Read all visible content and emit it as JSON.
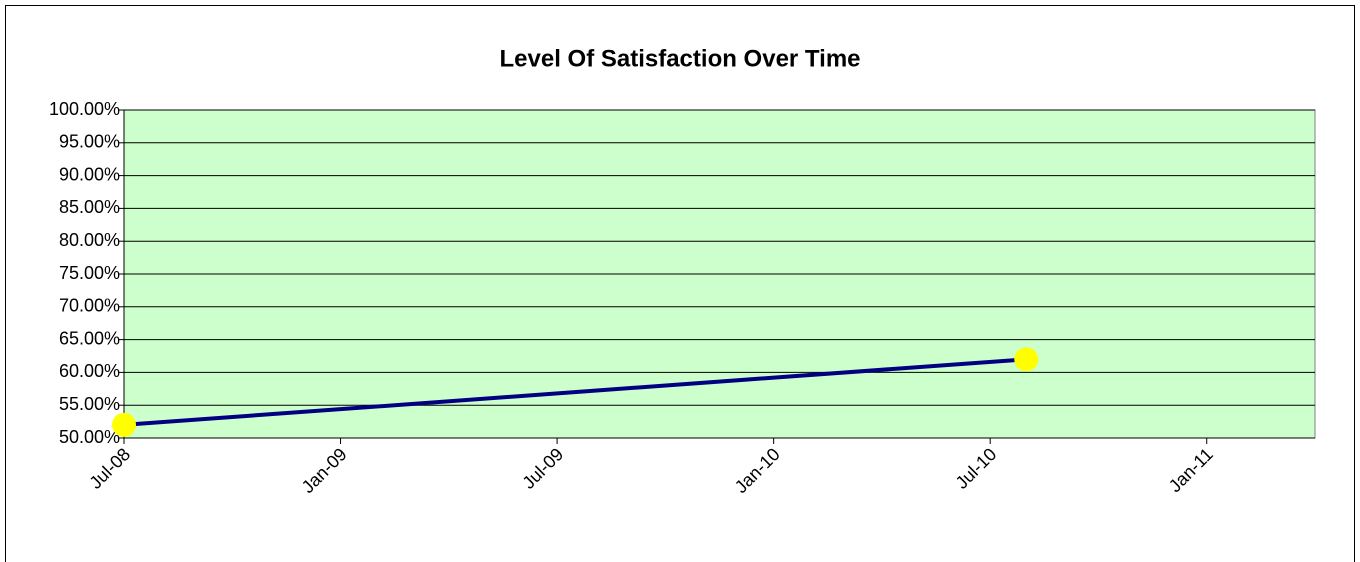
{
  "chart_data": {
    "type": "line",
    "title": "Level Of Satisfaction Over Time",
    "x": [
      "2008-07",
      "2010-08"
    ],
    "values": [
      52,
      62
    ],
    "color": "#000080",
    "marker_color": "#ffff00",
    "plot_background": "#ccffcc",
    "grid": true,
    "xlim": [
      "2008-07",
      "2011-04"
    ],
    "xticks": [
      {
        "value": "2008-07",
        "label": "Jul-08"
      },
      {
        "value": "2009-01",
        "label": "Jan-09"
      },
      {
        "value": "2009-07",
        "label": "Jul-09"
      },
      {
        "value": "2010-01",
        "label": "Jan-10"
      },
      {
        "value": "2010-07",
        "label": "Jul-10"
      },
      {
        "value": "2011-01",
        "label": "Jan-11"
      }
    ],
    "ylim": [
      50,
      100
    ],
    "yticks": [
      {
        "value": 50,
        "label": "50.00%"
      },
      {
        "value": 55,
        "label": "55.00%"
      },
      {
        "value": 60,
        "label": "60.00%"
      },
      {
        "value": 65,
        "label": "65.00%"
      },
      {
        "value": 70,
        "label": "70.00%"
      },
      {
        "value": 75,
        "label": "75.00%"
      },
      {
        "value": 80,
        "label": "80.00%"
      },
      {
        "value": 85,
        "label": "85.00%"
      },
      {
        "value": 90,
        "label": "90.00%"
      },
      {
        "value": 95,
        "label": "95.00%"
      },
      {
        "value": 100,
        "label": "100.00%"
      }
    ]
  }
}
